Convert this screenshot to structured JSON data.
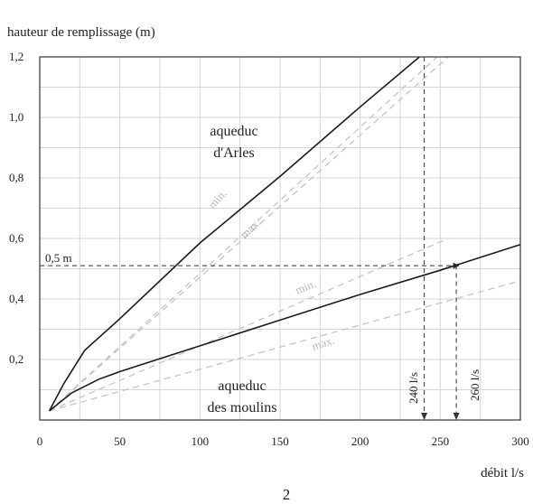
{
  "chart_data": {
    "type": "line",
    "ylabel": "hauteur de remplissage  (m)",
    "xlabel": "débit l/s",
    "figure_number": "2",
    "xlim": [
      0,
      300
    ],
    "ylim": [
      0,
      1.2
    ],
    "x_ticks": [
      {
        "value": 0,
        "label": "0"
      },
      {
        "value": 50,
        "label": "50"
      },
      {
        "value": 100,
        "label": "100"
      },
      {
        "value": 150,
        "label": "150"
      },
      {
        "value": 200,
        "label": "200"
      },
      {
        "value": 250,
        "label": "250"
      },
      {
        "value": 300,
        "label": "300"
      }
    ],
    "y_ticks": [
      {
        "value": 0.2,
        "label": "0,2"
      },
      {
        "value": 0.4,
        "label": "0,4"
      },
      {
        "value": 0.6,
        "label": "0,6"
      },
      {
        "value": 0.8,
        "label": "0,8"
      },
      {
        "value": 1.0,
        "label": "1,0"
      },
      {
        "value": 1.2,
        "label": "1,2"
      }
    ],
    "grid": true,
    "series": [
      {
        "key": "arles",
        "name": "aqueduc d'Arles",
        "label_lines": [
          "aqueduc",
          "d'Arles"
        ],
        "color": "#1a1a1a",
        "style": "solid",
        "points": [
          [
            6,
            0.03
          ],
          [
            15,
            0.12
          ],
          [
            28,
            0.23
          ],
          [
            50,
            0.335
          ],
          [
            100,
            0.585
          ],
          [
            150,
            0.805
          ],
          [
            200,
            1.035
          ],
          [
            237,
            1.2
          ]
        ]
      },
      {
        "key": "moulins",
        "name": "aqueduc des moulins",
        "label_lines": [
          "aqueduc",
          "des moulins"
        ],
        "color": "#1a1a1a",
        "style": "solid",
        "points": [
          [
            6,
            0.03
          ],
          [
            20,
            0.09
          ],
          [
            37,
            0.135
          ],
          [
            50,
            0.16
          ],
          [
            100,
            0.245
          ],
          [
            150,
            0.33
          ],
          [
            200,
            0.415
          ],
          [
            250,
            0.495
          ],
          [
            300,
            0.58
          ]
        ]
      },
      {
        "key": "arles_min",
        "name": "min.",
        "color": "#c4c4c4",
        "style": "dashed",
        "points": [
          [
            6,
            0.03
          ],
          [
            248,
            1.2
          ]
        ]
      },
      {
        "key": "arles_max",
        "name": "max.",
        "color": "#c4c4c4",
        "style": "dashed",
        "points": [
          [
            6,
            0.03
          ],
          [
            255,
            1.2
          ]
        ]
      },
      {
        "key": "moulins_min",
        "name": "min.",
        "color": "#c4c4c4",
        "style": "dashed",
        "points": [
          [
            6,
            0.03
          ],
          [
            255,
            0.6
          ]
        ]
      },
      {
        "key": "moulins_max",
        "name": "max.",
        "color": "#c4c4c4",
        "style": "dashed",
        "points": [
          [
            6,
            0.03
          ],
          [
            300,
            0.46
          ]
        ]
      }
    ],
    "reference_lines": [
      {
        "key": "h",
        "orientation": "horizontal",
        "value": 0.51,
        "label": "0,5 m"
      },
      {
        "key": "v240",
        "orientation": "vertical",
        "value": 240,
        "label": "240 l/s"
      },
      {
        "key": "v260",
        "orientation": "vertical",
        "value": 260,
        "label": "260 l/s"
      }
    ],
    "annotations": {
      "arles_min": "min.",
      "arles_max": "max.",
      "moulins_min": "min.",
      "moulins_max": "max."
    }
  }
}
